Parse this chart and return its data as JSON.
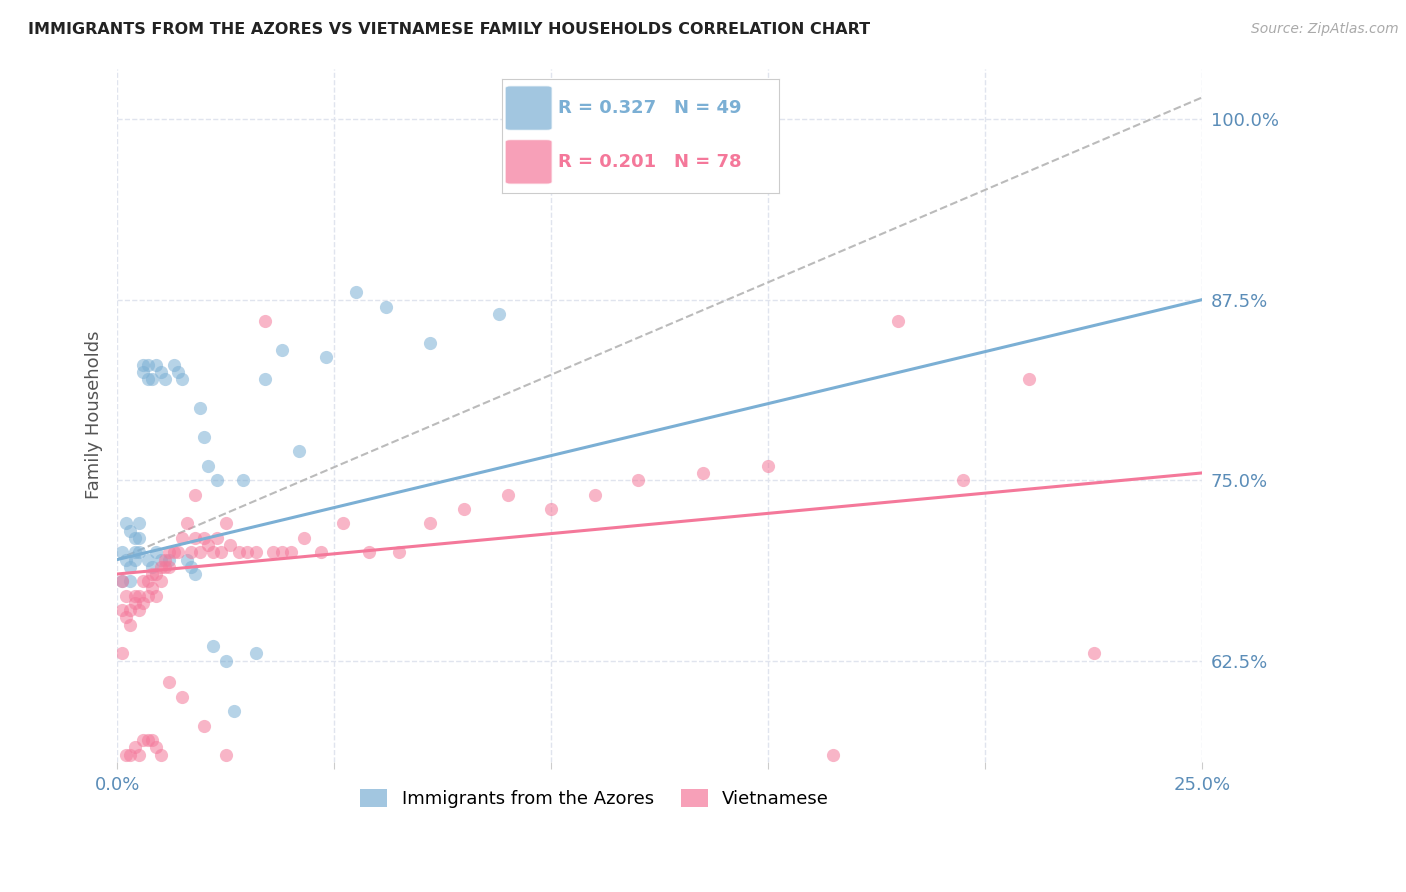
{
  "title": "IMMIGRANTS FROM THE AZORES VS VIETNAMESE FAMILY HOUSEHOLDS CORRELATION CHART",
  "source": "Source: ZipAtlas.com",
  "ylabel": "Family Households",
  "ytick_vals": [
    0.625,
    0.75,
    0.875,
    1.0
  ],
  "ytick_labels": [
    "62.5%",
    "75.0%",
    "87.5%",
    "100.0%"
  ],
  "xtick_positions": [
    0.0,
    0.05,
    0.1,
    0.15,
    0.2,
    0.25
  ],
  "xtick_labels": [
    "0.0%",
    "",
    "",
    "",
    "",
    "25.0%"
  ],
  "xmin": 0.0,
  "xmax": 0.25,
  "ymin": 0.555,
  "ymax": 1.035,
  "color_azores": "#7BAFD4",
  "color_vietnamese": "#F4789A",
  "color_title": "#222222",
  "color_source": "#AAAAAA",
  "color_axis_labels": "#5B8DB8",
  "color_grid": "#E0E4EE",
  "scatter_alpha": 0.55,
  "scatter_size": 90,
  "azores_trend_x": [
    0.0,
    0.25
  ],
  "azores_trend_y": [
    0.695,
    0.875
  ],
  "vietnamese_trend_x": [
    0.0,
    0.25
  ],
  "vietnamese_trend_y": [
    0.685,
    0.755
  ],
  "dashed_trend_x": [
    0.0,
    0.25
  ],
  "dashed_trend_y": [
    0.695,
    1.015
  ],
  "legend_r1": "R = 0.327",
  "legend_n1": "N = 49",
  "legend_r2": "R = 0.201",
  "legend_n2": "N = 78",
  "label_azores": "Immigrants from the Azores",
  "label_vietnamese": "Vietnamese",
  "azores_x": [
    0.001,
    0.001,
    0.002,
    0.002,
    0.003,
    0.003,
    0.003,
    0.004,
    0.004,
    0.004,
    0.005,
    0.005,
    0.005,
    0.006,
    0.006,
    0.007,
    0.007,
    0.007,
    0.008,
    0.008,
    0.009,
    0.009,
    0.01,
    0.01,
    0.011,
    0.012,
    0.013,
    0.014,
    0.015,
    0.016,
    0.017,
    0.018,
    0.019,
    0.02,
    0.021,
    0.022,
    0.023,
    0.025,
    0.027,
    0.029,
    0.032,
    0.034,
    0.038,
    0.042,
    0.048,
    0.055,
    0.062,
    0.072,
    0.088
  ],
  "azores_y": [
    0.68,
    0.7,
    0.72,
    0.695,
    0.715,
    0.69,
    0.68,
    0.71,
    0.7,
    0.695,
    0.72,
    0.71,
    0.7,
    0.825,
    0.83,
    0.83,
    0.82,
    0.695,
    0.82,
    0.69,
    0.83,
    0.7,
    0.695,
    0.825,
    0.82,
    0.695,
    0.83,
    0.825,
    0.82,
    0.695,
    0.69,
    0.685,
    0.8,
    0.78,
    0.76,
    0.635,
    0.75,
    0.625,
    0.59,
    0.75,
    0.63,
    0.82,
    0.84,
    0.77,
    0.835,
    0.88,
    0.87,
    0.845,
    0.865
  ],
  "vietnamese_x": [
    0.001,
    0.001,
    0.002,
    0.002,
    0.003,
    0.003,
    0.004,
    0.004,
    0.005,
    0.005,
    0.006,
    0.006,
    0.007,
    0.007,
    0.008,
    0.008,
    0.009,
    0.009,
    0.01,
    0.01,
    0.011,
    0.011,
    0.012,
    0.012,
    0.013,
    0.014,
    0.015,
    0.016,
    0.017,
    0.018,
    0.019,
    0.02,
    0.021,
    0.022,
    0.023,
    0.024,
    0.025,
    0.026,
    0.028,
    0.03,
    0.032,
    0.034,
    0.036,
    0.038,
    0.04,
    0.043,
    0.047,
    0.052,
    0.058,
    0.065,
    0.072,
    0.08,
    0.09,
    0.1,
    0.11,
    0.12,
    0.135,
    0.15,
    0.165,
    0.18,
    0.195,
    0.21,
    0.225,
    0.001,
    0.002,
    0.003,
    0.004,
    0.005,
    0.006,
    0.007,
    0.008,
    0.009,
    0.01,
    0.012,
    0.015,
    0.018,
    0.02,
    0.025
  ],
  "vietnamese_y": [
    0.68,
    0.66,
    0.67,
    0.655,
    0.66,
    0.65,
    0.665,
    0.67,
    0.67,
    0.66,
    0.68,
    0.665,
    0.68,
    0.67,
    0.685,
    0.675,
    0.685,
    0.67,
    0.69,
    0.68,
    0.695,
    0.69,
    0.7,
    0.69,
    0.7,
    0.7,
    0.71,
    0.72,
    0.7,
    0.71,
    0.7,
    0.71,
    0.705,
    0.7,
    0.71,
    0.7,
    0.72,
    0.705,
    0.7,
    0.7,
    0.7,
    0.86,
    0.7,
    0.7,
    0.7,
    0.71,
    0.7,
    0.72,
    0.7,
    0.7,
    0.72,
    0.73,
    0.74,
    0.73,
    0.74,
    0.75,
    0.755,
    0.76,
    0.56,
    0.86,
    0.75,
    0.82,
    0.63,
    0.63,
    0.56,
    0.56,
    0.565,
    0.56,
    0.57,
    0.57,
    0.57,
    0.565,
    0.56,
    0.61,
    0.6,
    0.74,
    0.58,
    0.56
  ]
}
